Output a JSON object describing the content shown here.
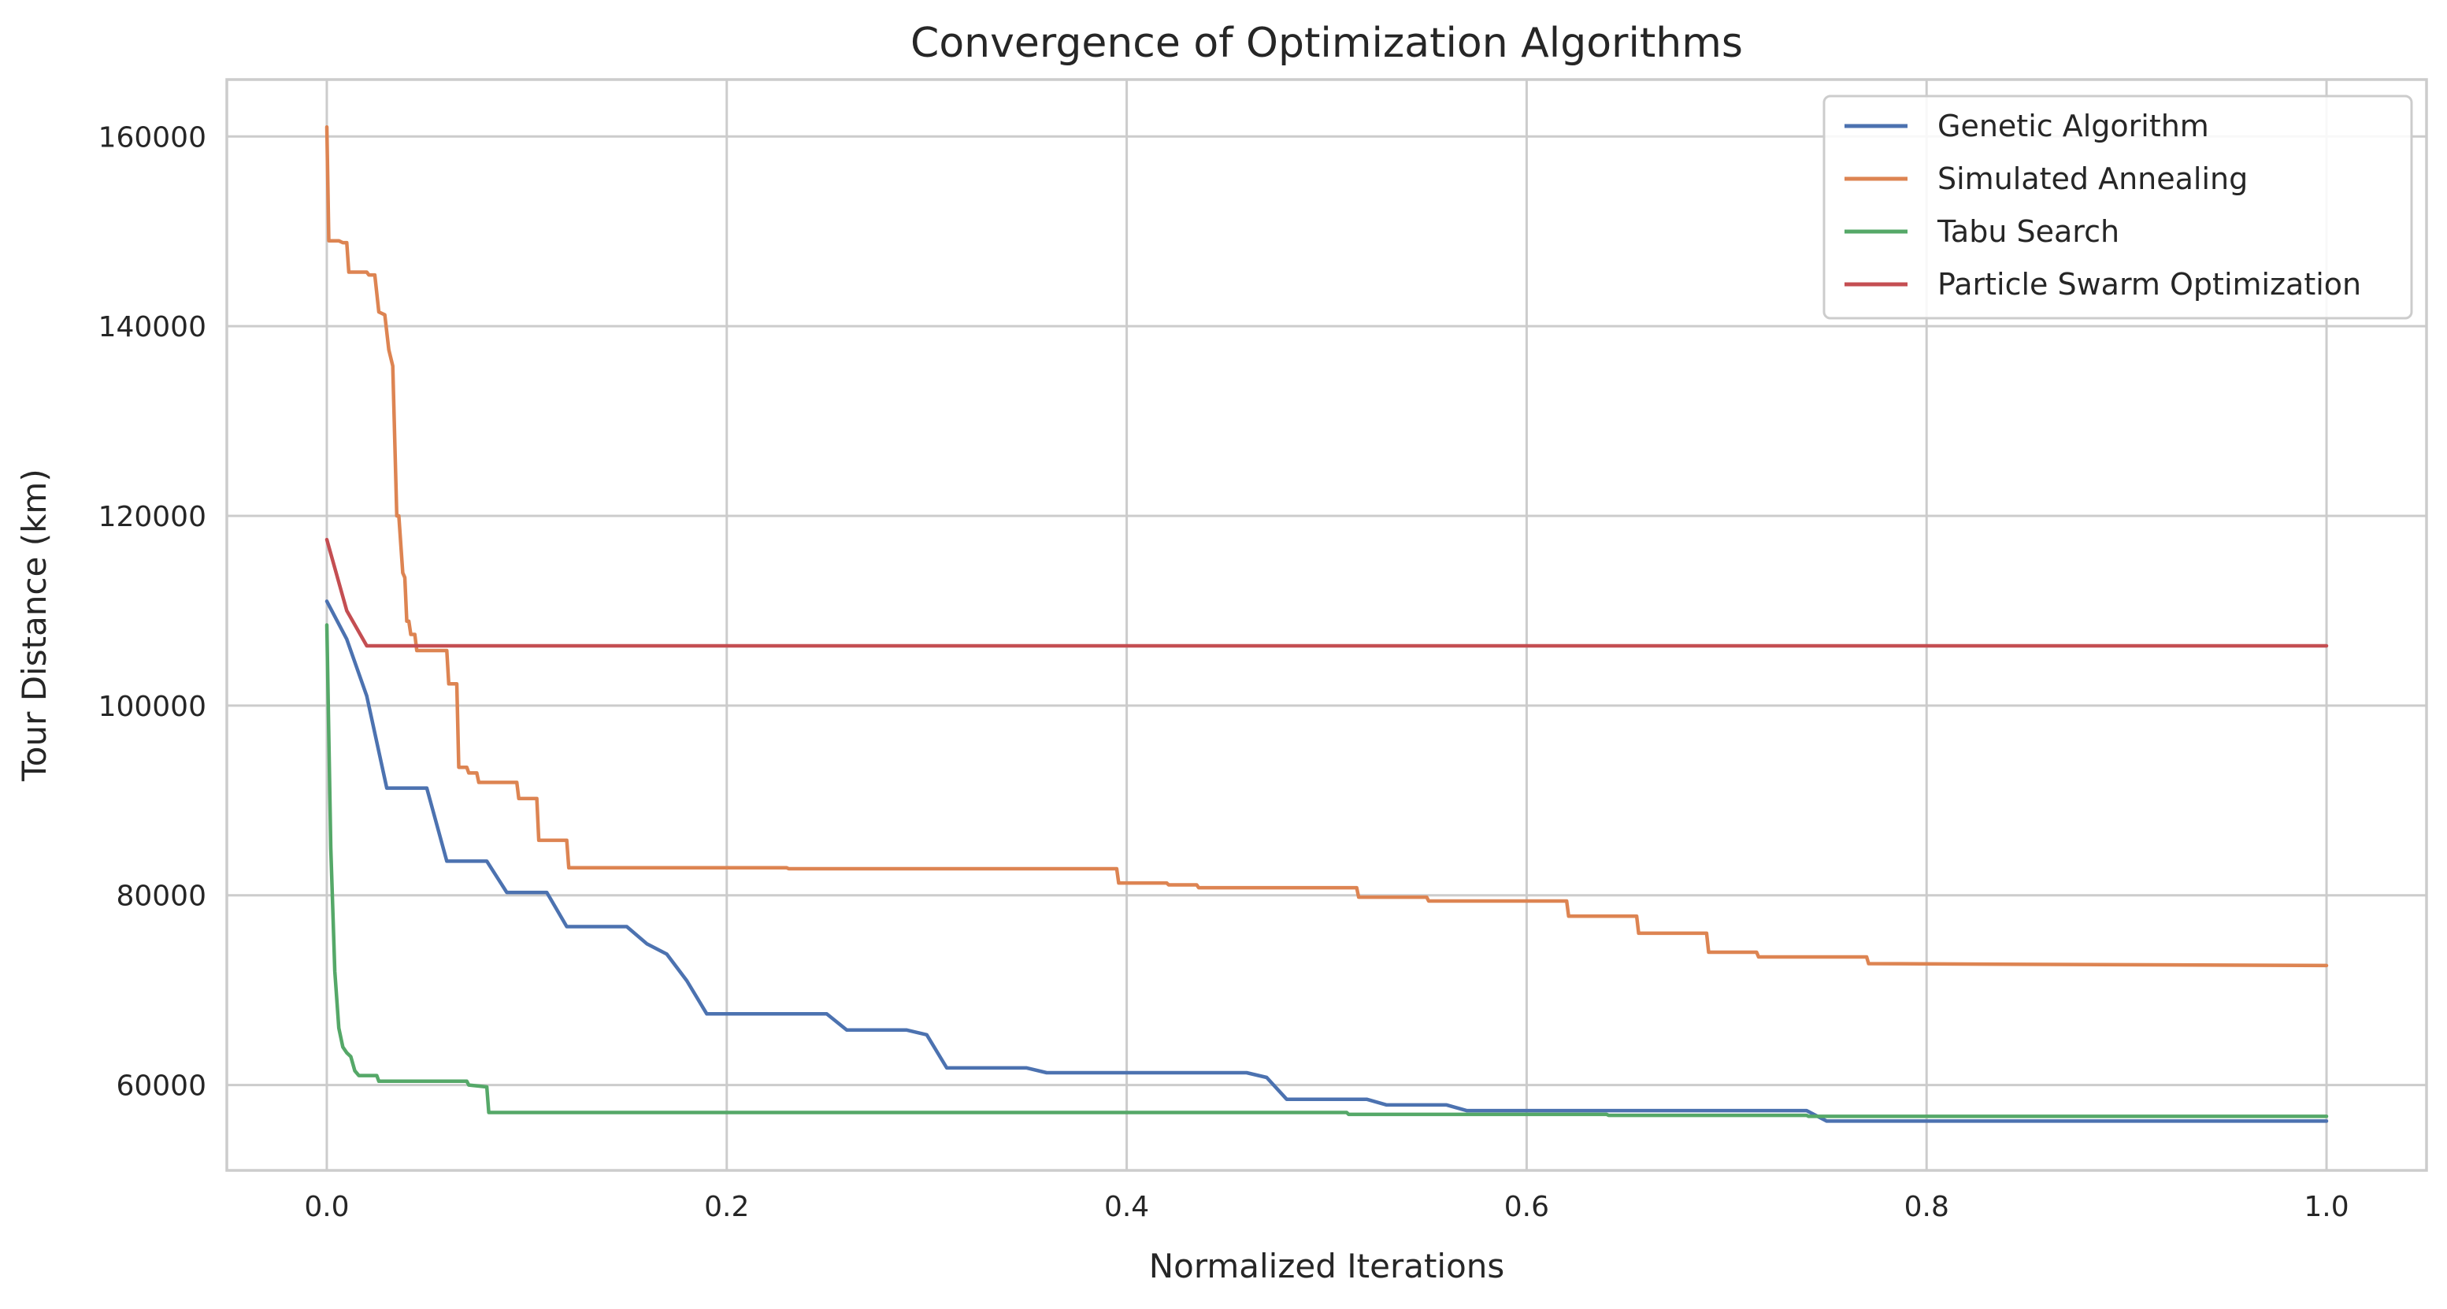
{
  "chart_data": {
    "type": "line",
    "title": "Convergence of Optimization Algorithms",
    "xlabel": "Normalized Iterations",
    "ylabel": "Tour Distance (km)",
    "xlim": [
      -0.05,
      1.05
    ],
    "ylim": [
      51000,
      166000
    ],
    "xticks": [
      0.0,
      0.2,
      0.4,
      0.6,
      0.8,
      1.0
    ],
    "xtick_labels": [
      "0.0",
      "0.2",
      "0.4",
      "0.6",
      "0.8",
      "1.0"
    ],
    "yticks": [
      60000,
      80000,
      100000,
      120000,
      140000,
      160000
    ],
    "ytick_labels": [
      "60000",
      "80000",
      "100000",
      "120000",
      "140000",
      "160000"
    ],
    "grid": true,
    "legend_position": "top-right",
    "series": [
      {
        "name": "Genetic Algorithm",
        "color": "#4c72b0",
        "x": [
          0.0,
          0.01,
          0.02,
          0.03,
          0.05,
          0.06,
          0.08,
          0.09,
          0.11,
          0.12,
          0.15,
          0.16,
          0.17,
          0.18,
          0.19,
          0.25,
          0.26,
          0.29,
          0.3,
          0.31,
          0.35,
          0.36,
          0.46,
          0.47,
          0.48,
          0.49,
          0.52,
          0.53,
          0.56,
          0.57,
          0.74,
          0.75,
          1.0
        ],
        "y": [
          111000,
          107000,
          101000,
          91300,
          91300,
          83600,
          83600,
          80300,
          80300,
          76700,
          76700,
          74900,
          73800,
          71000,
          67500,
          67500,
          65800,
          65800,
          65300,
          61800,
          61800,
          61300,
          61300,
          60800,
          58500,
          58500,
          58500,
          57900,
          57900,
          57300,
          57300,
          56200,
          56200
        ]
      },
      {
        "name": "Simulated Annealing",
        "color": "#dd8452",
        "x": [
          0.0,
          0.001,
          0.002,
          0.006,
          0.008,
          0.01,
          0.011,
          0.02,
          0.021,
          0.024,
          0.026,
          0.029,
          0.031,
          0.033,
          0.035,
          0.036,
          0.038,
          0.039,
          0.04,
          0.041,
          0.042,
          0.044,
          0.045,
          0.046,
          0.047,
          0.06,
          0.061,
          0.065,
          0.066,
          0.07,
          0.071,
          0.075,
          0.076,
          0.08,
          0.081,
          0.095,
          0.096,
          0.105,
          0.106,
          0.12,
          0.121,
          0.23,
          0.231,
          0.395,
          0.396,
          0.42,
          0.421,
          0.435,
          0.436,
          0.515,
          0.516,
          0.55,
          0.551,
          0.62,
          0.621,
          0.655,
          0.656,
          0.69,
          0.691,
          0.715,
          0.716,
          0.77,
          0.771,
          1.0
        ],
        "y": [
          161000,
          149000,
          149000,
          149000,
          148800,
          148800,
          145700,
          145700,
          145400,
          145400,
          141500,
          141200,
          137500,
          135800,
          120000,
          120000,
          114000,
          113500,
          108900,
          108900,
          107500,
          107500,
          105800,
          105800,
          105800,
          105800,
          102300,
          102300,
          93500,
          93500,
          92900,
          92900,
          91900,
          91900,
          91900,
          91900,
          90200,
          90200,
          85800,
          85800,
          82900,
          82900,
          82800,
          82800,
          81300,
          81300,
          81100,
          81100,
          80800,
          80800,
          79800,
          79800,
          79400,
          79400,
          77800,
          77800,
          76000,
          76000,
          74000,
          74000,
          73500,
          73500,
          72800,
          72600
        ]
      },
      {
        "name": "Tabu Search",
        "color": "#55a868",
        "x": [
          0.0,
          0.002,
          0.004,
          0.006,
          0.008,
          0.01,
          0.012,
          0.014,
          0.016,
          0.025,
          0.026,
          0.07,
          0.071,
          0.08,
          0.081,
          0.51,
          0.511,
          0.64,
          0.641,
          0.74,
          0.741,
          1.0
        ],
        "y": [
          108500,
          85000,
          72000,
          66000,
          64000,
          63400,
          63000,
          61500,
          61000,
          61000,
          60400,
          60400,
          60000,
          59800,
          57100,
          57100,
          56900,
          56900,
          56800,
          56800,
          56700,
          56700
        ]
      },
      {
        "name": "Particle Swarm Optimization",
        "color": "#c44e52",
        "x": [
          0.0,
          0.01,
          0.02,
          1.0
        ],
        "y": [
          117500,
          110000,
          106300,
          106300
        ]
      }
    ]
  }
}
